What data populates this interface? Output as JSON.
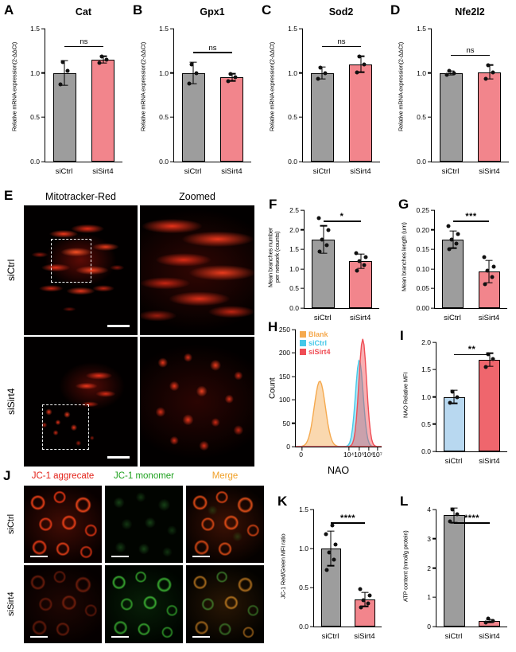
{
  "letters": [
    "A",
    "B",
    "C",
    "D",
    "E",
    "F",
    "G",
    "H",
    "I",
    "J",
    "K",
    "L"
  ],
  "panelE": {
    "col_titles": [
      "Mitotracker-Red",
      "Zoomed"
    ],
    "row_labels": [
      "siCtrl",
      "siSirt4"
    ]
  },
  "panelJ": {
    "col_titles": [
      {
        "text": "JC-1 aggrecate",
        "color": "#e32219"
      },
      {
        "text": "JC-1 monomer",
        "color": "#1fa11f"
      },
      {
        "text": "Merge",
        "color": "#f0a028"
      }
    ],
    "row_labels": [
      "siCtrl",
      "siSirt4"
    ]
  },
  "colors": {
    "bar_gray": "#9d9d9d",
    "bar_pink": "#f2858c",
    "bar_lightblue": "#b8d8f0",
    "bar_red": "#ef666d",
    "flow_orange": "#f5a94e",
    "flow_cyan": "#45c8e8",
    "flow_red": "#ef4d55"
  },
  "chart_data": [
    {
      "id": "A",
      "type": "bar",
      "title": "Cat",
      "ylabel": "Relative mRNA expression(2-ΔΔCt)",
      "categories": [
        "siCtrl",
        "siSirt4"
      ],
      "values": [
        1.0,
        1.15
      ],
      "errors": [
        0.14,
        0.04
      ],
      "points": [
        [
          0.87,
          1.02,
          1.12
        ],
        [
          1.11,
          1.15,
          1.19
        ]
      ],
      "ylim": [
        0,
        1.5
      ],
      "yticks": [
        0,
        0.5,
        1,
        1.5
      ],
      "ydecimals": 1,
      "sig": "ns",
      "bar_colors": [
        "#9d9d9d",
        "#f2858c"
      ]
    },
    {
      "id": "B",
      "type": "bar",
      "title": "Gpx1",
      "ylabel": "Relative mRNA expression(2-ΔΔCt)",
      "categories": [
        "siCtrl",
        "siSirt4"
      ],
      "values": [
        1.0,
        0.95
      ],
      "errors": [
        0.12,
        0.04
      ],
      "points": [
        [
          0.88,
          1.0,
          1.1
        ],
        [
          0.91,
          0.95,
          0.99
        ]
      ],
      "ylim": [
        0,
        1.5
      ],
      "yticks": [
        0,
        0.5,
        1,
        1.5
      ],
      "ydecimals": 1,
      "sig": "ns",
      "bar_colors": [
        "#9d9d9d",
        "#f2858c"
      ]
    },
    {
      "id": "C",
      "type": "bar",
      "title": "Sod2",
      "ylabel": "Relative mRNA expression(2-ΔΔCt)",
      "categories": [
        "siCtrl",
        "siSirt4"
      ],
      "values": [
        1.0,
        1.1
      ],
      "errors": [
        0.07,
        0.09
      ],
      "points": [
        [
          0.93,
          1.0,
          1.06
        ],
        [
          1.01,
          1.1,
          1.19
        ]
      ],
      "ylim": [
        0,
        1.5
      ],
      "yticks": [
        0,
        0.5,
        1,
        1.5
      ],
      "ydecimals": 1,
      "sig": "ns",
      "bar_colors": [
        "#9d9d9d",
        "#f2858c"
      ]
    },
    {
      "id": "D",
      "type": "bar",
      "title": "Nfe2l2",
      "ylabel": "Relative mRNA expression(2-ΔΔCt)",
      "categories": [
        "siCtrl",
        "siSirt4"
      ],
      "values": [
        1.0,
        1.01
      ],
      "errors": [
        0.02,
        0.08
      ],
      "points": [
        [
          0.98,
          1.0,
          1.02
        ],
        [
          0.93,
          1.01,
          1.09
        ]
      ],
      "ylim": [
        0,
        1.5
      ],
      "yticks": [
        0,
        0.5,
        1,
        1.5
      ],
      "ydecimals": 1,
      "sig": "ns",
      "bar_colors": [
        "#9d9d9d",
        "#f2858c"
      ]
    },
    {
      "id": "F",
      "type": "bar",
      "title": "",
      "ylabel": "Mean branches number\nper network (counts)",
      "categories": [
        "siCtrl",
        "siSirt4"
      ],
      "values": [
        1.75,
        1.2
      ],
      "errors": [
        0.35,
        0.18
      ],
      "points": [
        [
          1.45,
          1.6,
          1.75,
          2.0,
          2.3
        ],
        [
          0.95,
          1.1,
          1.2,
          1.3,
          1.4
        ]
      ],
      "ylim": [
        0,
        2.5
      ],
      "yticks": [
        0,
        0.5,
        1,
        1.5,
        2,
        2.5
      ],
      "ydecimals": 1,
      "sig": "*",
      "bar_colors": [
        "#9d9d9d",
        "#f2858c"
      ]
    },
    {
      "id": "G",
      "type": "bar",
      "title": "",
      "ylabel": "Mean branches length (um)",
      "categories": [
        "siCtrl",
        "siSirt4"
      ],
      "values": [
        0.175,
        0.093
      ],
      "errors": [
        0.022,
        0.028
      ],
      "points": [
        [
          0.15,
          0.165,
          0.175,
          0.19,
          0.21
        ],
        [
          0.06,
          0.08,
          0.095,
          0.105,
          0.13
        ]
      ],
      "ylim": [
        0,
        0.25
      ],
      "yticks": [
        0,
        0.05,
        0.1,
        0.15,
        0.2,
        0.25
      ],
      "ydecimals": 2,
      "sig": "***",
      "bar_colors": [
        "#9d9d9d",
        "#f2858c"
      ]
    },
    {
      "id": "H",
      "type": "flow-histogram",
      "xlabel": "NAO",
      "ylabel": "Count",
      "ylim": [
        0,
        250
      ],
      "yticks": [
        0,
        50,
        100,
        150,
        200,
        250
      ],
      "xticks": [
        {
          "label": "0",
          "pos": 0.07
        },
        {
          "label": "10⁴",
          "pos": 0.62
        },
        {
          "label": "10⁵",
          "pos": 0.74
        },
        {
          "label": "10⁶",
          "pos": 0.85
        },
        {
          "label": "10⁷",
          "pos": 0.95
        }
      ],
      "series": [
        {
          "name": "Blank",
          "color": "#f5a94e",
          "peak_x": 0.28,
          "peak_count": 140,
          "width": 0.065
        },
        {
          "name": "siCtrl",
          "color": "#45c8e8",
          "peak_x": 0.74,
          "peak_count": 185,
          "width": 0.045
        },
        {
          "name": "siSirt4",
          "color": "#ef4d55",
          "peak_x": 0.78,
          "peak_count": 230,
          "width": 0.045
        }
      ]
    },
    {
      "id": "I",
      "type": "bar",
      "title": "",
      "ylabel": "NAO Relative MFI",
      "categories": [
        "siCtrl",
        "siSirt4"
      ],
      "values": [
        1.0,
        1.68
      ],
      "errors": [
        0.12,
        0.12
      ],
      "points": [
        [
          0.89,
          1.0,
          1.1
        ],
        [
          1.55,
          1.7,
          1.78
        ]
      ],
      "ylim": [
        0,
        2
      ],
      "yticks": [
        0,
        0.5,
        1,
        1.5,
        2
      ],
      "ydecimals": 1,
      "sig": "**",
      "bar_colors": [
        "#b8d8f0",
        "#ef666d"
      ]
    },
    {
      "id": "K",
      "type": "bar",
      "title": "",
      "ylabel": "JC-1 Red/Green MFI ratio",
      "categories": [
        "siCtrl",
        "siSirt4"
      ],
      "values": [
        1.0,
        0.35
      ],
      "errors": [
        0.22,
        0.09
      ],
      "points": [
        [
          0.72,
          0.86,
          0.95,
          1.05,
          1.18,
          1.3
        ],
        [
          0.25,
          0.3,
          0.34,
          0.4,
          0.48
        ]
      ],
      "ylim": [
        0,
        1.5
      ],
      "yticks": [
        0,
        0.5,
        1,
        1.5
      ],
      "ydecimals": 1,
      "sig": "****",
      "bar_colors": [
        "#9d9d9d",
        "#f2858c"
      ]
    },
    {
      "id": "L",
      "type": "bar",
      "title": "",
      "ylabel": "ATP content (nmol/g protein)",
      "categories": [
        "siCtrl",
        "siSirt4"
      ],
      "values": [
        3.8,
        0.2
      ],
      "errors": [
        0.25,
        0.05
      ],
      "points": [
        [
          3.6,
          3.85,
          4.0
        ],
        [
          0.14,
          0.2,
          0.26
        ]
      ],
      "ylim": [
        0,
        4
      ],
      "yticks": [
        0,
        1,
        2,
        3,
        4
      ],
      "ydecimals": 0,
      "sig": "****",
      "bar_colors": [
        "#9d9d9d",
        "#f2858c"
      ]
    }
  ]
}
